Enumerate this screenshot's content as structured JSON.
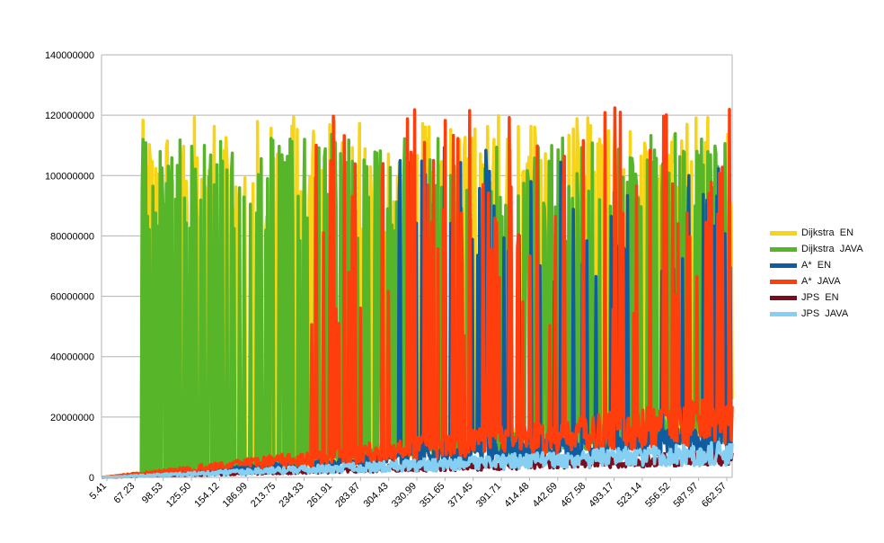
{
  "chart_data": {
    "type": "line",
    "title": "",
    "xlabel": "",
    "ylabel": "",
    "ylim": [
      0,
      140000000
    ],
    "y_ticks": [
      0,
      20000000,
      40000000,
      60000000,
      80000000,
      100000000,
      120000000,
      140000000
    ],
    "y_tick_labels": [
      "0",
      "20000000",
      "40000000",
      "60000000",
      "80000000",
      "100000000",
      "120000000",
      "140000000"
    ],
    "x_tick_labels": [
      "5.41",
      "67.23",
      "98.53",
      "125.50",
      "154.12",
      "186.99",
      "213.75",
      "234.33",
      "261.91",
      "283.87",
      "304.43",
      "330.99",
      "351.65",
      "371.45",
      "391.71",
      "414.48",
      "442.69",
      "467.58",
      "493.17",
      "523.14",
      "556.52",
      "587.97",
      "662.57"
    ],
    "grid": "horizontal",
    "legend_position": "right",
    "n_points": 700,
    "series": [
      {
        "name": "Dijkstra  EN",
        "color": "#f7d417",
        "envelope": {
          "base_start": 0,
          "base_end": 27000000,
          "low_start": 0,
          "low_end": 12000000,
          "spike_prob": 0.35,
          "spike_min": 80000000,
          "spike_max": 120000000,
          "spike_start_index": 45
        }
      },
      {
        "name": "Dijkstra  JAVA",
        "color": "#57b52a",
        "envelope": {
          "base_start": 0,
          "base_end": 24000000,
          "low_start": 0,
          "low_end": 12000000,
          "spike_prob": 0.33,
          "spike_min": 78000000,
          "spike_max": 114000000,
          "spike_start_index": 45
        }
      },
      {
        "name": "A*  EN",
        "color": "#105ca0",
        "envelope": {
          "base_start": 0,
          "base_end": 18000000,
          "low_start": 0,
          "low_end": 8000000,
          "spike_prob": 0.14,
          "spike_min": 60000000,
          "spike_max": 110000000,
          "spike_start_index": 330
        }
      },
      {
        "name": "A*  JAVA",
        "color": "#ff3e0d",
        "envelope": {
          "base_start": 0,
          "base_end": 27000000,
          "low_start": 0,
          "low_end": 11000000,
          "spike_prob": 0.12,
          "spike_min": 45000000,
          "spike_max": 126000000,
          "spike_start_index": 230
        }
      },
      {
        "name": "JPS  EN",
        "color": "#7b0c1b",
        "envelope": {
          "base_start": 0,
          "base_end": 9000000,
          "low_start": 0,
          "low_end": 4000000,
          "spike_prob": 0.0,
          "spike_min": 0,
          "spike_max": 0,
          "spike_start_index": 0
        }
      },
      {
        "name": "JPS  JAVA",
        "color": "#85cff3",
        "envelope": {
          "base_start": 0,
          "base_end": 12000000,
          "low_start": 0,
          "low_end": 4000000,
          "spike_prob": 0.0,
          "spike_min": 0,
          "spike_max": 0,
          "spike_start_index": 0
        }
      }
    ]
  }
}
